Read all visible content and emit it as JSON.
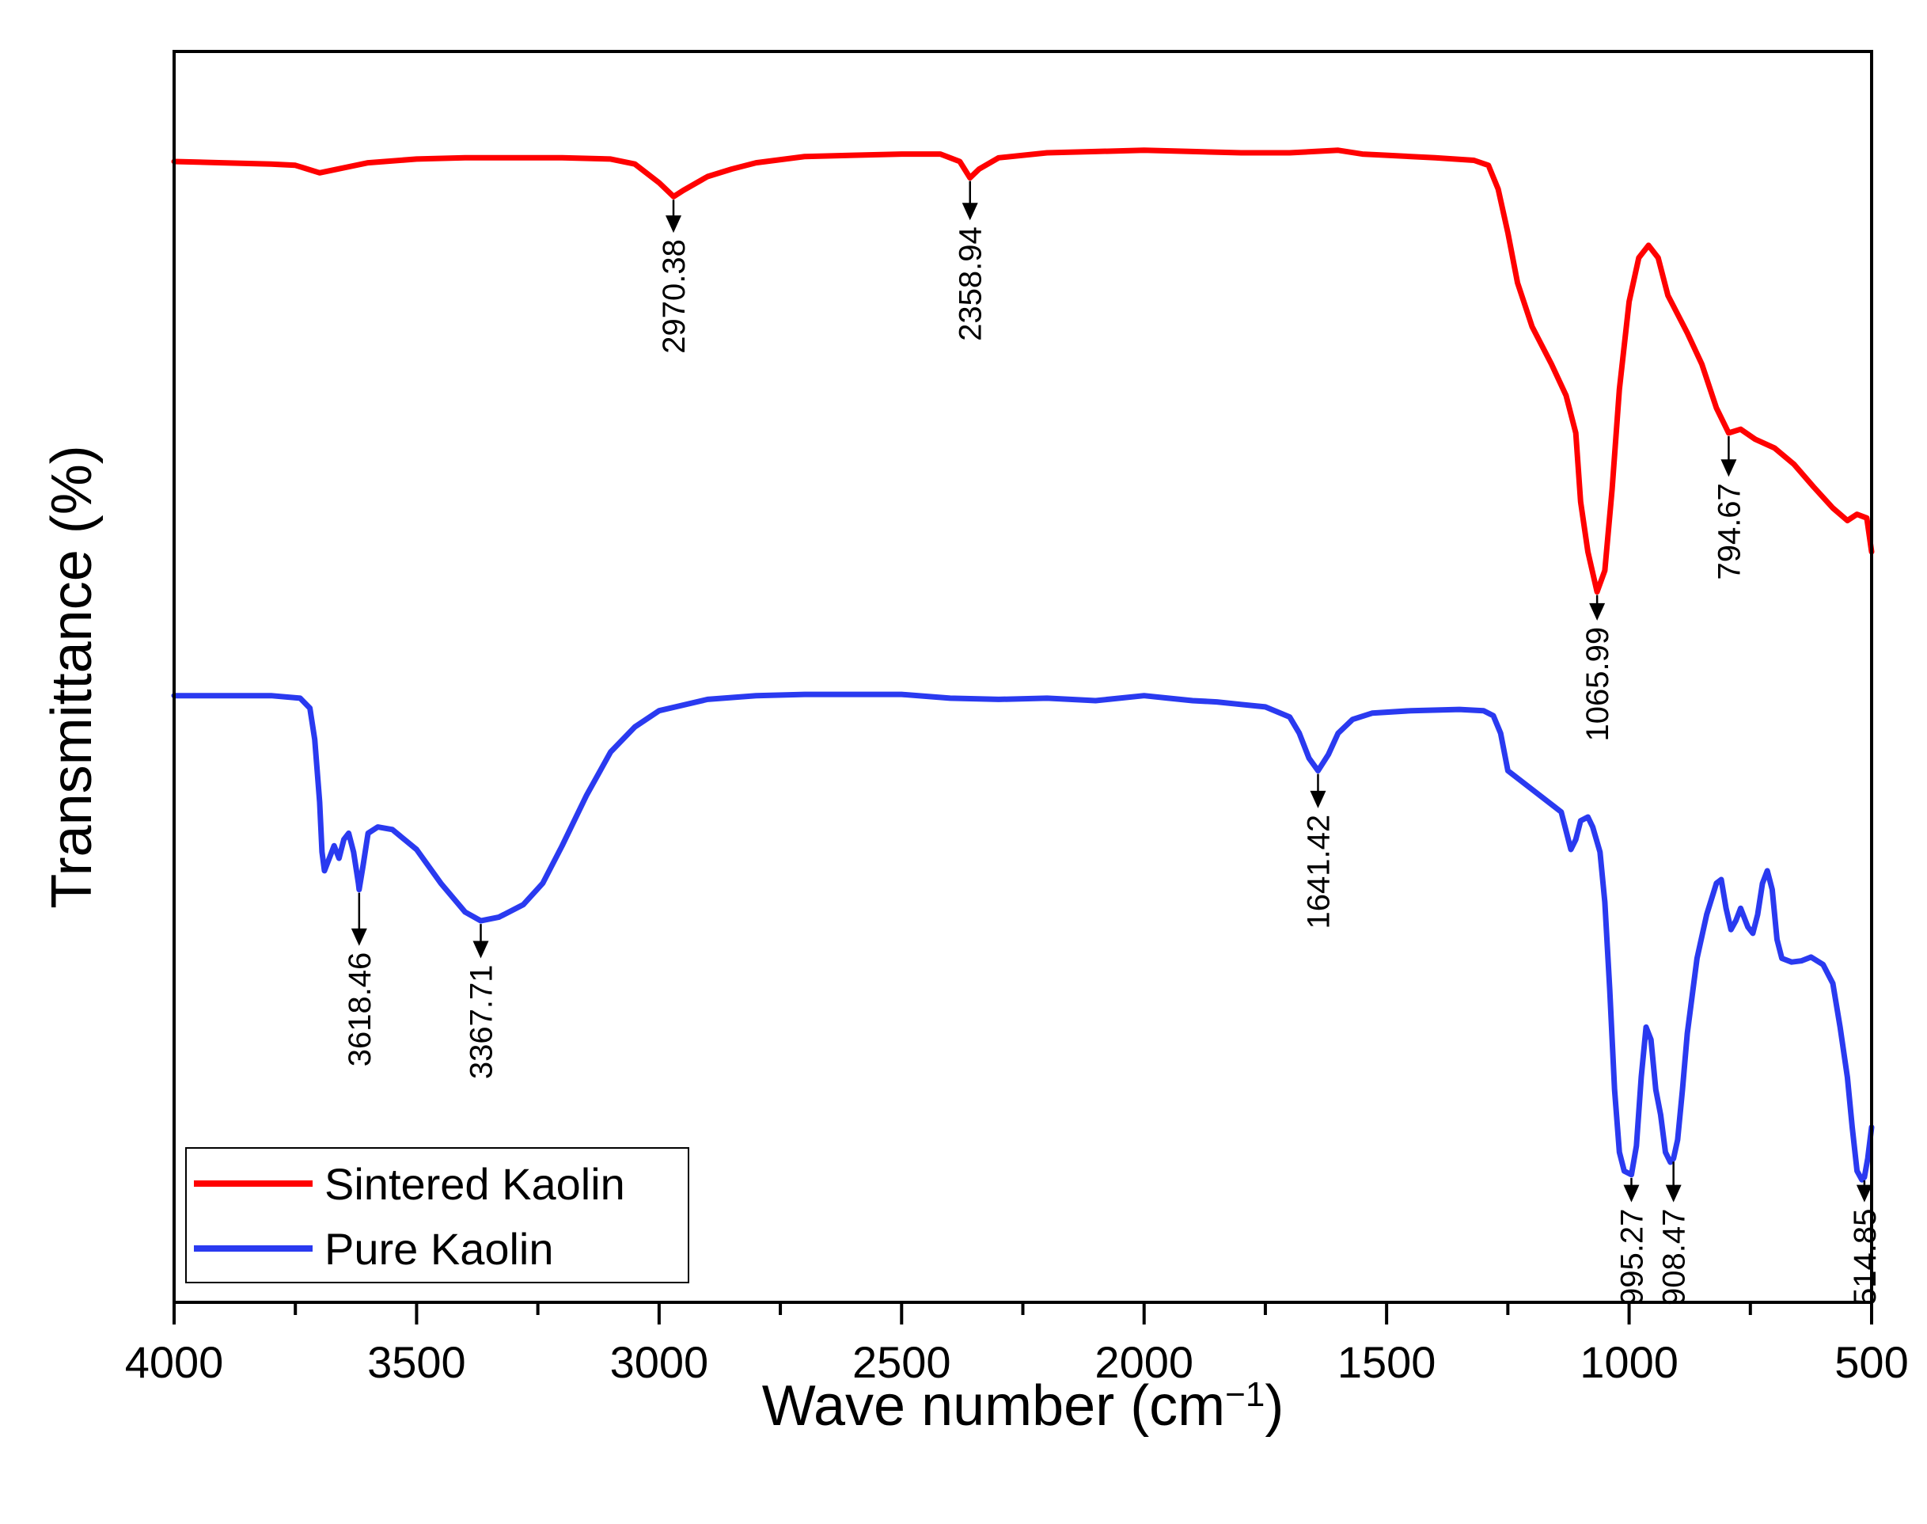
{
  "chart_data": {
    "type": "line",
    "title": "",
    "xlabel": "Wave number (cm",
    "xlabel_superscript": "−1",
    "xlabel_suffix": ")",
    "ylabel": "Transmittance (%)",
    "xlim": [
      4000,
      500
    ],
    "x_reversed": true,
    "ylim": [
      0,
      100
    ],
    "y_ticks_shown": false,
    "x_ticks": [
      4000,
      3500,
      3000,
      2500,
      2000,
      1500,
      1000,
      500
    ],
    "x_tick_labels": [
      "4000",
      "3500",
      "3000",
      "2500",
      "2000",
      "1500",
      "1000",
      "500"
    ],
    "grid": false,
    "legend_position": "bottom-left",
    "series": [
      {
        "name": "Sintered Kaolin",
        "color": "#ff0000",
        "points": [
          [
            4000,
            91.2
          ],
          [
            3900,
            91.1
          ],
          [
            3800,
            91.0
          ],
          [
            3750,
            90.9
          ],
          [
            3700,
            90.3
          ],
          [
            3650,
            90.7
          ],
          [
            3600,
            91.1
          ],
          [
            3500,
            91.4
          ],
          [
            3400,
            91.5
          ],
          [
            3300,
            91.5
          ],
          [
            3200,
            91.5
          ],
          [
            3100,
            91.4
          ],
          [
            3050,
            91.0
          ],
          [
            3000,
            89.5
          ],
          [
            2970,
            88.4
          ],
          [
            2950,
            88.9
          ],
          [
            2900,
            90.0
          ],
          [
            2850,
            90.6
          ],
          [
            2800,
            91.1
          ],
          [
            2700,
            91.6
          ],
          [
            2600,
            91.7
          ],
          [
            2500,
            91.8
          ],
          [
            2420,
            91.8
          ],
          [
            2380,
            91.2
          ],
          [
            2359,
            89.9
          ],
          [
            2340,
            90.6
          ],
          [
            2300,
            91.5
          ],
          [
            2200,
            91.9
          ],
          [
            2100,
            92.0
          ],
          [
            2000,
            92.1
          ],
          [
            1900,
            92.0
          ],
          [
            1800,
            91.9
          ],
          [
            1700,
            91.9
          ],
          [
            1650,
            92.0
          ],
          [
            1600,
            92.1
          ],
          [
            1550,
            91.8
          ],
          [
            1500,
            91.7
          ],
          [
            1400,
            91.5
          ],
          [
            1320,
            91.3
          ],
          [
            1290,
            90.9
          ],
          [
            1270,
            89.0
          ],
          [
            1250,
            85.5
          ],
          [
            1230,
            81.5
          ],
          [
            1200,
            78.0
          ],
          [
            1160,
            75.0
          ],
          [
            1130,
            72.5
          ],
          [
            1110,
            69.5
          ],
          [
            1100,
            64.0
          ],
          [
            1085,
            60.0
          ],
          [
            1066,
            56.8
          ],
          [
            1050,
            58.5
          ],
          [
            1035,
            65.0
          ],
          [
            1020,
            73.0
          ],
          [
            1000,
            80.0
          ],
          [
            980,
            83.5
          ],
          [
            960,
            84.5
          ],
          [
            940,
            83.5
          ],
          [
            920,
            80.5
          ],
          [
            880,
            77.5
          ],
          [
            850,
            75.0
          ],
          [
            820,
            71.5
          ],
          [
            794.67,
            69.5
          ],
          [
            770,
            69.8
          ],
          [
            740,
            69.0
          ],
          [
            700,
            68.3
          ],
          [
            660,
            67.0
          ],
          [
            620,
            65.2
          ],
          [
            580,
            63.5
          ],
          [
            550,
            62.5
          ],
          [
            530,
            63.0
          ],
          [
            510,
            62.7
          ],
          [
            500,
            60.0
          ]
        ]
      },
      {
        "name": "Pure Kaolin",
        "color": "#2a3af0",
        "points": [
          [
            4000,
            48.5
          ],
          [
            3900,
            48.5
          ],
          [
            3800,
            48.5
          ],
          [
            3740,
            48.3
          ],
          [
            3720,
            47.5
          ],
          [
            3710,
            45.0
          ],
          [
            3700,
            40.0
          ],
          [
            3695,
            36.0
          ],
          [
            3690,
            34.5
          ],
          [
            3680,
            35.5
          ],
          [
            3670,
            36.5
          ],
          [
            3660,
            35.5
          ],
          [
            3650,
            37.0
          ],
          [
            3640,
            37.5
          ],
          [
            3630,
            36.0
          ],
          [
            3620,
            33.5
          ],
          [
            3618.46,
            33.0
          ],
          [
            3610,
            35.0
          ],
          [
            3600,
            37.5
          ],
          [
            3580,
            38.0
          ],
          [
            3550,
            37.8
          ],
          [
            3500,
            36.2
          ],
          [
            3450,
            33.5
          ],
          [
            3400,
            31.2
          ],
          [
            3367.71,
            30.5
          ],
          [
            3330,
            30.8
          ],
          [
            3280,
            31.8
          ],
          [
            3240,
            33.5
          ],
          [
            3200,
            36.5
          ],
          [
            3150,
            40.5
          ],
          [
            3100,
            44.0
          ],
          [
            3050,
            46.0
          ],
          [
            3000,
            47.3
          ],
          [
            2900,
            48.2
          ],
          [
            2800,
            48.5
          ],
          [
            2700,
            48.6
          ],
          [
            2600,
            48.6
          ],
          [
            2500,
            48.6
          ],
          [
            2400,
            48.3
          ],
          [
            2300,
            48.2
          ],
          [
            2200,
            48.3
          ],
          [
            2100,
            48.1
          ],
          [
            2000,
            48.5
          ],
          [
            1950,
            48.3
          ],
          [
            1900,
            48.1
          ],
          [
            1850,
            48.0
          ],
          [
            1800,
            47.8
          ],
          [
            1750,
            47.6
          ],
          [
            1700,
            46.8
          ],
          [
            1680,
            45.5
          ],
          [
            1660,
            43.5
          ],
          [
            1641.42,
            42.5
          ],
          [
            1620,
            43.8
          ],
          [
            1600,
            45.5
          ],
          [
            1570,
            46.6
          ],
          [
            1530,
            47.1
          ],
          [
            1450,
            47.3
          ],
          [
            1350,
            47.4
          ],
          [
            1300,
            47.3
          ],
          [
            1280,
            46.9
          ],
          [
            1265,
            45.5
          ],
          [
            1250,
            42.5
          ],
          [
            1140,
            39.2
          ],
          [
            1120,
            36.2
          ],
          [
            1110,
            37.0
          ],
          [
            1100,
            38.5
          ],
          [
            1085,
            38.8
          ],
          [
            1075,
            38.0
          ],
          [
            1060,
            36.0
          ],
          [
            1050,
            32.0
          ],
          [
            1040,
            25.0
          ],
          [
            1030,
            17.0
          ],
          [
            1020,
            12.0
          ],
          [
            1010,
            10.5
          ],
          [
            995.27,
            10.2
          ],
          [
            985,
            12.5
          ],
          [
            975,
            18.0
          ],
          [
            965,
            22.0
          ],
          [
            955,
            21.0
          ],
          [
            945,
            17.0
          ],
          [
            935,
            15.0
          ],
          [
            925,
            12.0
          ],
          [
            915,
            11.2
          ],
          [
            908.47,
            11.5
          ],
          [
            900,
            13.0
          ],
          [
            890,
            17.0
          ],
          [
            880,
            21.5
          ],
          [
            860,
            27.5
          ],
          [
            840,
            31.0
          ],
          [
            820,
            33.5
          ],
          [
            810,
            33.8
          ],
          [
            800,
            31.5
          ],
          [
            790,
            29.8
          ],
          [
            780,
            30.5
          ],
          [
            770,
            31.5
          ],
          [
            755,
            30.0
          ],
          [
            745,
            29.5
          ],
          [
            735,
            31.0
          ],
          [
            725,
            33.5
          ],
          [
            715,
            34.5
          ],
          [
            705,
            33.0
          ],
          [
            695,
            29.0
          ],
          [
            685,
            27.5
          ],
          [
            665,
            27.2
          ],
          [
            645,
            27.3
          ],
          [
            625,
            27.6
          ],
          [
            600,
            27.0
          ],
          [
            580,
            25.5
          ],
          [
            565,
            22.0
          ],
          [
            550,
            18.0
          ],
          [
            540,
            14.0
          ],
          [
            530,
            10.5
          ],
          [
            520,
            9.8
          ],
          [
            514.85,
            10.0
          ],
          [
            508,
            11.5
          ],
          [
            500,
            14.0
          ]
        ]
      }
    ],
    "annotations": [
      {
        "series": "Sintered Kaolin",
        "x": 2970.38,
        "label": "2970.38",
        "y_tip": 85.5
      },
      {
        "series": "Sintered Kaolin",
        "x": 2358.94,
        "label": "2358.94",
        "y_tip": 86.5
      },
      {
        "series": "Sintered Kaolin",
        "x": 1065.99,
        "label": "1065.99",
        "y_tip": 54.5
      },
      {
        "series": "Sintered Kaolin",
        "x": 794.67,
        "label": "794.67",
        "y_tip": 66.0
      },
      {
        "series": "Pure Kaolin",
        "x": 3618.46,
        "label": "3618.46",
        "y_tip": 28.5
      },
      {
        "series": "Pure Kaolin",
        "x": 3367.71,
        "label": "3367.71",
        "y_tip": 27.5
      },
      {
        "series": "Pure Kaolin",
        "x": 1641.42,
        "label": "1641.42",
        "y_tip": 39.5
      },
      {
        "series": "Pure Kaolin",
        "x": 995.27,
        "label": "995.27",
        "y_tip": 8.0
      },
      {
        "series": "Pure Kaolin",
        "x": 908.47,
        "label": "908.47",
        "y_tip": 8.0
      },
      {
        "series": "Pure Kaolin",
        "x": 514.85,
        "label": "514.85",
        "y_tip": 8.0
      }
    ],
    "legend": [
      {
        "label": "Sintered Kaolin",
        "color": "#ff0000"
      },
      {
        "label": "Pure Kaolin",
        "color": "#2a3af0"
      }
    ]
  }
}
